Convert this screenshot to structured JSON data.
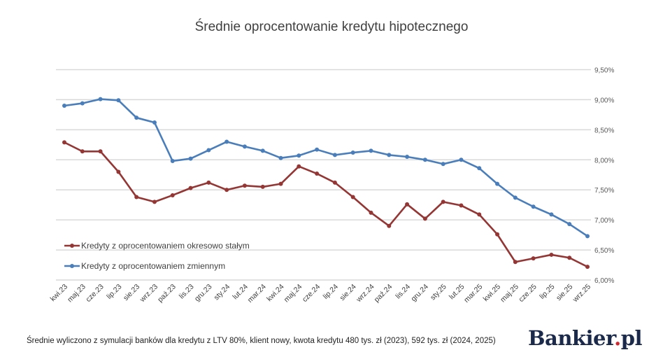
{
  "chart_data": {
    "type": "line",
    "title": "Średnie oprocentowanie kredytu hipotecznego",
    "xlabel": "",
    "ylabel": "",
    "ylim": [
      6.0,
      9.5
    ],
    "yticks": [
      "6,00%",
      "6,50%",
      "7,00%",
      "7,50%",
      "8,00%",
      "8,50%",
      "9,00%",
      "9,50%"
    ],
    "ytick_values": [
      6.0,
      6.5,
      7.0,
      7.5,
      8.0,
      8.5,
      9.0,
      9.5
    ],
    "grid": true,
    "legend_position": "bottom-left",
    "categories": [
      "kwi.23",
      "maj.23",
      "cze.23",
      "lip.23",
      "sie.23",
      "wrz.23",
      "paź.23",
      "lis.23",
      "gru.23",
      "sty.24",
      "lut.24",
      "mar.24",
      "kwi.24",
      "maj.24",
      "cze.24",
      "lip.24",
      "sie.24",
      "wrz.24",
      "paź.24",
      "lis.24",
      "gru.24",
      "sty.25",
      "lut.25",
      "mar.25",
      "kwi.25",
      "maj.25",
      "cze.25",
      "lip.25",
      "sie.25",
      "wrz.25"
    ],
    "series": [
      {
        "name": "Kredyty z oprocentowaniem okresowo stałym",
        "color": "#943634",
        "values": [
          8.29,
          8.14,
          8.14,
          7.8,
          7.38,
          7.3,
          7.41,
          7.53,
          7.62,
          7.5,
          7.57,
          7.55,
          7.6,
          7.89,
          7.77,
          7.62,
          7.38,
          7.12,
          6.9,
          7.26,
          7.02,
          7.3,
          7.24,
          7.09,
          6.76,
          6.3,
          6.36,
          6.42,
          6.37,
          6.22
        ]
      },
      {
        "name": "Kredyty z oprocentowaniem zmiennym",
        "color": "#4a7ebb",
        "values": [
          8.9,
          8.94,
          9.01,
          8.99,
          8.7,
          8.62,
          7.98,
          8.02,
          8.16,
          8.3,
          8.22,
          8.15,
          8.03,
          8.07,
          8.17,
          8.08,
          8.12,
          8.15,
          8.08,
          8.05,
          8.0,
          7.93,
          8.0,
          7.86,
          7.6,
          7.37,
          7.22,
          7.09,
          6.93,
          6.73
        ]
      }
    ]
  },
  "footnote": "Średnie wyliczono z symulacji banków dla kredytu z LTV 80%, klient nowy, kwota kredytu 480 tys. zł (2023), 592 tys. zł (2024, 2025)",
  "logo": {
    "name": "Bankier",
    "dot": ".",
    "suffix": "pl"
  }
}
